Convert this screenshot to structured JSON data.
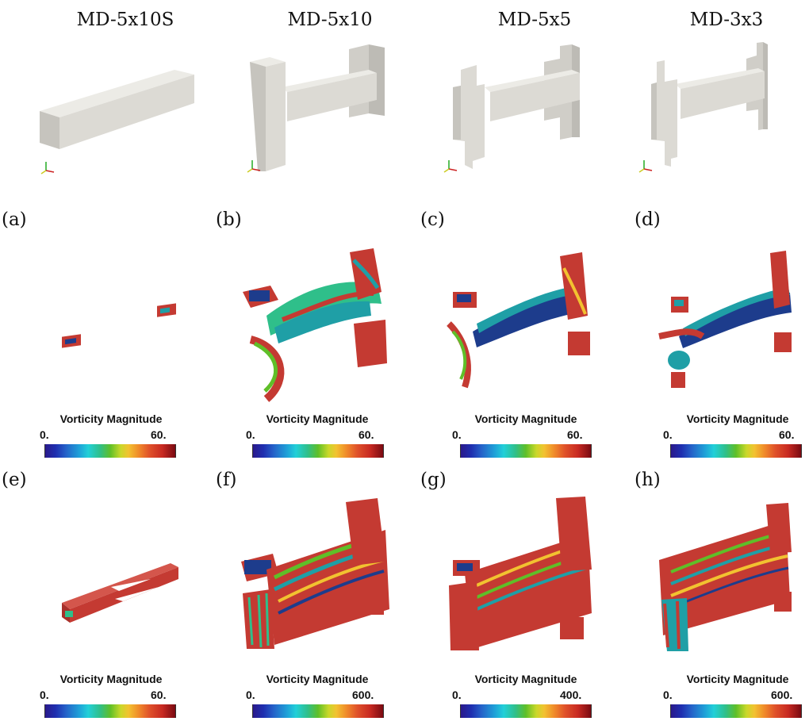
{
  "columns": [
    "MD-5x10S",
    "MD-5x10",
    "MD-5x5",
    "MD-3x3"
  ],
  "panel_labels": [
    "(a)",
    "(b)",
    "(c)",
    "(d)",
    "(e)",
    "(f)",
    "(g)",
    "(h)"
  ],
  "colorbar_title": "Vorticity Magnitude",
  "row2_colorbars": [
    {
      "min": "0.",
      "max": "60."
    },
    {
      "min": "0.",
      "max": "60."
    },
    {
      "min": "0.",
      "max": "60."
    },
    {
      "min": "0.",
      "max": "60."
    }
  ],
  "row3_colorbars": [
    {
      "min": "0.",
      "max": "60."
    },
    {
      "min": "0.",
      "max": "600."
    },
    {
      "min": "0.",
      "max": "400."
    },
    {
      "min": "0.",
      "max": "600."
    }
  ],
  "colors": {
    "geometry": "#d8d6d0",
    "iso_red": "#c43a32",
    "iso_teal": "#1f9fa6",
    "iso_blue": "#1d3c8c"
  }
}
